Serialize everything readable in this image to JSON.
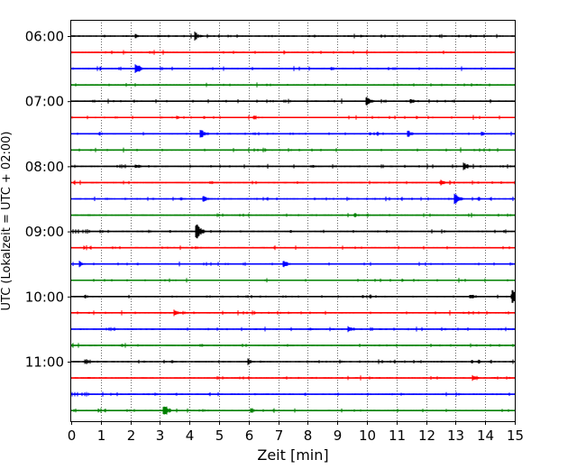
{
  "chart_data": {
    "type": "line",
    "title": "",
    "xlabel": "Zeit  [min]",
    "ylabel": "UTC (Lokalzeit = UTC + 02:00)",
    "xlim": [
      0,
      15
    ],
    "x_ticks": [
      "0",
      "1",
      "2",
      "3",
      "4",
      "5",
      "6",
      "7",
      "8",
      "9",
      "10",
      "11",
      "12",
      "13",
      "14",
      "15"
    ],
    "y_tick_labels": [
      "06:00",
      "07:00",
      "08:00",
      "09:00",
      "10:00",
      "11:00"
    ],
    "y_tick_rows": [
      0,
      4,
      8,
      12,
      16,
      20
    ],
    "trace_interval_minutes": 15,
    "row_count": 24,
    "grid": "vertical-dotted",
    "colors": [
      "#000000",
      "#ff0000",
      "#0000ff",
      "#008000"
    ],
    "events": [
      {
        "row": 0,
        "x": 4.2,
        "amp": 6
      },
      {
        "row": 0,
        "x": 2.2,
        "amp": 3
      },
      {
        "row": 2,
        "x": 2.2,
        "amp": 9
      },
      {
        "row": 2,
        "x": 8.8,
        "amp": 3
      },
      {
        "row": 4,
        "x": 10.0,
        "amp": 6
      },
      {
        "row": 4,
        "x": 11.5,
        "amp": 4
      },
      {
        "row": 5,
        "x": 6.2,
        "amp": 4
      },
      {
        "row": 6,
        "x": 4.4,
        "amp": 8
      },
      {
        "row": 6,
        "x": 11.4,
        "amp": 5
      },
      {
        "row": 6,
        "x": 13.9,
        "amp": 3
      },
      {
        "row": 8,
        "x": 13.3,
        "amp": 5
      },
      {
        "row": 8,
        "x": 2.2,
        "amp": 4
      },
      {
        "row": 9,
        "x": 12.5,
        "amp": 5
      },
      {
        "row": 10,
        "x": 13.0,
        "amp": 8
      },
      {
        "row": 10,
        "x": 4.5,
        "amp": 4
      },
      {
        "row": 11,
        "x": 9.6,
        "amp": 3
      },
      {
        "row": 12,
        "x": 4.25,
        "amp": 12
      },
      {
        "row": 12,
        "x": 1.0,
        "amp": 3
      },
      {
        "row": 14,
        "x": 7.2,
        "amp": 5
      },
      {
        "row": 14,
        "x": 0.3,
        "amp": 4
      },
      {
        "row": 16,
        "x": 14.95,
        "amp": 11
      },
      {
        "row": 16,
        "x": 13.5,
        "amp": 4
      },
      {
        "row": 17,
        "x": 3.5,
        "amp": 5
      },
      {
        "row": 18,
        "x": 9.4,
        "amp": 5
      },
      {
        "row": 19,
        "x": 1.7,
        "amp": 3
      },
      {
        "row": 20,
        "x": 0.5,
        "amp": 4
      },
      {
        "row": 20,
        "x": 6.0,
        "amp": 4
      },
      {
        "row": 21,
        "x": 13.6,
        "amp": 4
      },
      {
        "row": 23,
        "x": 3.15,
        "amp": 9
      },
      {
        "row": 23,
        "x": 6.1,
        "amp": 4
      }
    ]
  }
}
